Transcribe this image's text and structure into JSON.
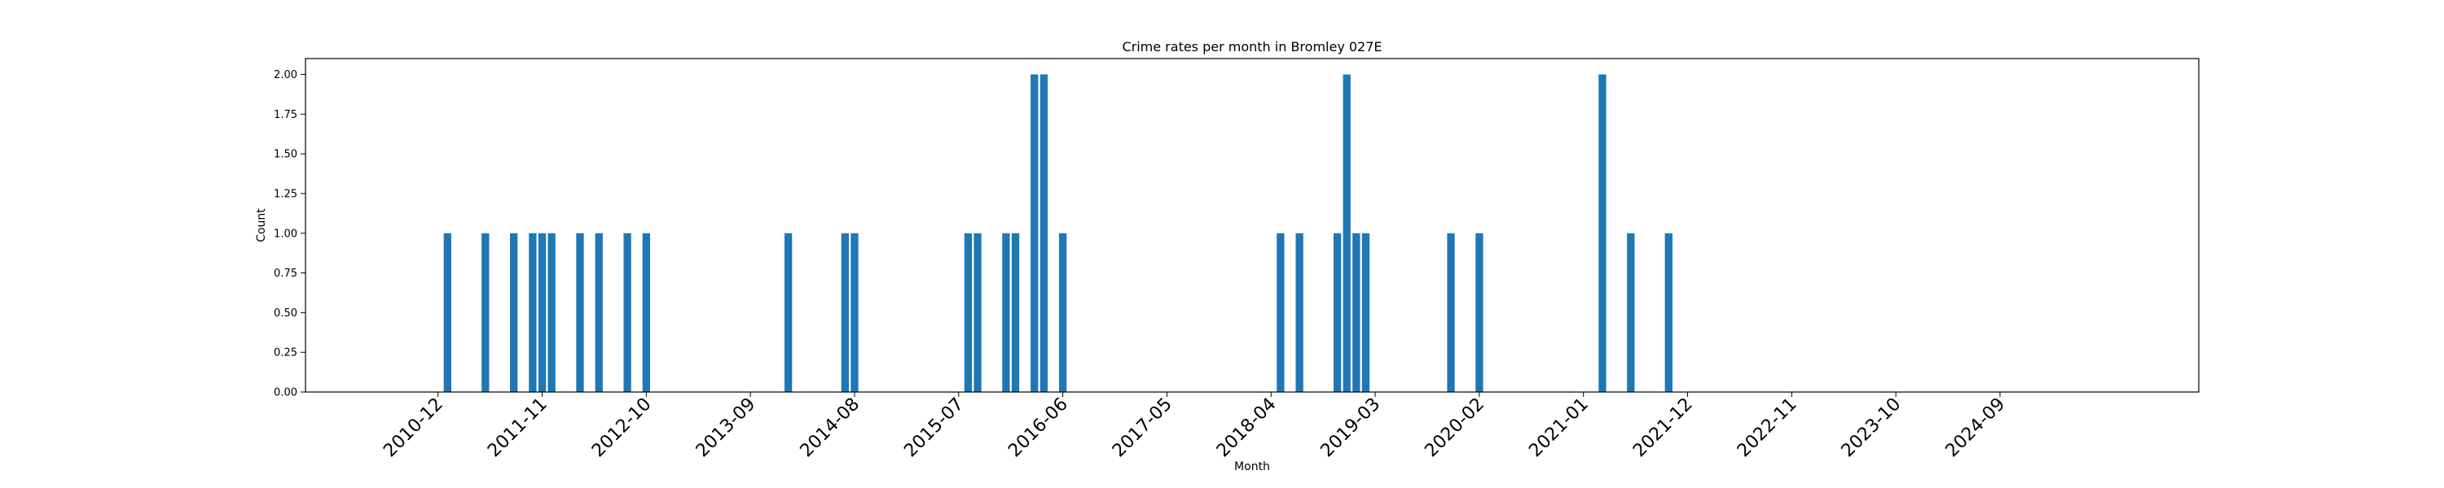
{
  "chart_data": {
    "type": "bar",
    "title": "Crime rates per month in Bromley 027E",
    "xlabel": "Month",
    "ylabel": "Count",
    "ylim": [
      0,
      2.1
    ],
    "xlim": [
      "2009-10",
      "2026-06"
    ],
    "y_ticks": [
      "0.00",
      "0.25",
      "0.50",
      "0.75",
      "1.00",
      "1.25",
      "1.50",
      "1.75",
      "2.00"
    ],
    "x_ticks": [
      "2010-12",
      "2011-11",
      "2012-10",
      "2013-09",
      "2014-08",
      "2015-07",
      "2016-06",
      "2017-05",
      "2018-04",
      "2019-03",
      "2020-02",
      "2021-01",
      "2021-12",
      "2022-11",
      "2023-10",
      "2024-09"
    ],
    "grid": false,
    "legend": "none",
    "bar_color": "#1f77b4",
    "x": [
      "2011-01",
      "2011-05",
      "2011-08",
      "2011-10",
      "2011-11",
      "2011-12",
      "2012-03",
      "2012-05",
      "2012-08",
      "2012-10",
      "2014-01",
      "2014-07",
      "2014-08",
      "2015-08",
      "2015-09",
      "2015-12",
      "2016-01",
      "2016-03",
      "2016-04",
      "2016-06",
      "2018-05",
      "2018-07",
      "2018-11",
      "2018-12",
      "2019-01",
      "2019-02",
      "2019-11",
      "2020-02",
      "2021-03",
      "2021-06",
      "2021-10"
    ],
    "values": [
      1,
      1,
      1,
      1,
      1,
      1,
      1,
      1,
      1,
      1,
      1,
      1,
      1,
      1,
      1,
      1,
      1,
      2,
      2,
      1,
      1,
      1,
      1,
      2,
      1,
      1,
      1,
      1,
      2,
      1,
      1
    ]
  }
}
